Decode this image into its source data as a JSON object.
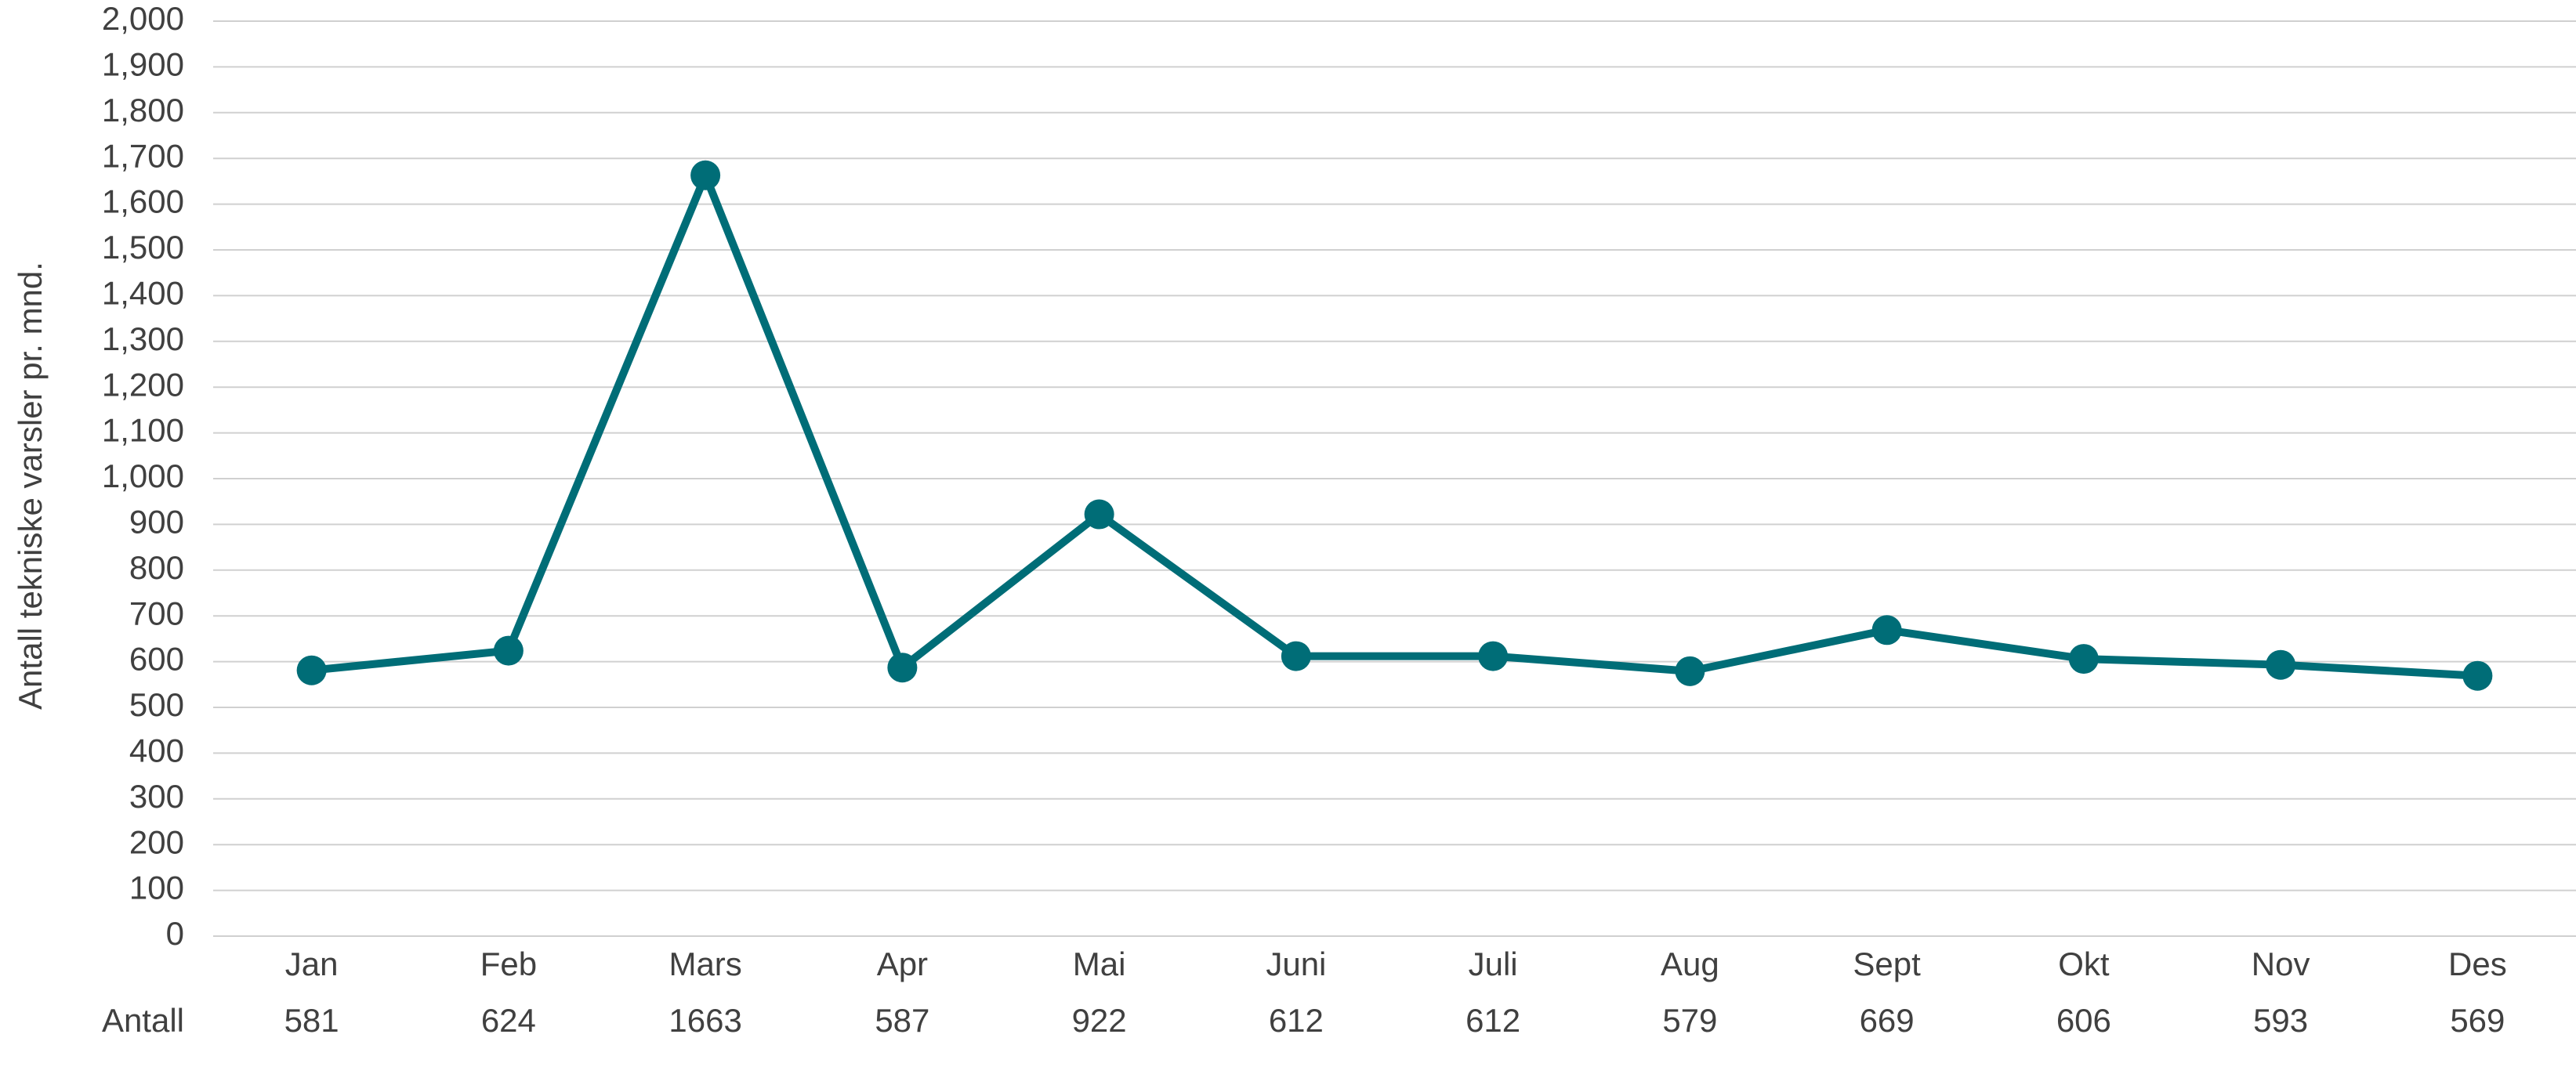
{
  "chart_data": {
    "type": "line",
    "y_label": "Antall tekniske varsler pr. mnd.",
    "categories": [
      "Jan",
      "Feb",
      "Mars",
      "Apr",
      "Mai",
      "Juni",
      "Juli",
      "Aug",
      "Sept",
      "Okt",
      "Nov",
      "Des"
    ],
    "series": [
      {
        "name": "Antall",
        "color": "#006d77",
        "values": [
          581,
          624,
          1663,
          587,
          922,
          612,
          612,
          579,
          669,
          606,
          593,
          569
        ]
      }
    ],
    "ylim": [
      0,
      2000
    ],
    "yticks": [
      0,
      100,
      200,
      300,
      400,
      500,
      600,
      700,
      800,
      900,
      {
        "value": 1000,
        "label": "1,000"
      },
      {
        "value": 1100,
        "label": "1,100"
      },
      {
        "value": 1200,
        "label": "1,200"
      },
      {
        "value": 1300,
        "label": "1,300"
      },
      {
        "value": 1400,
        "label": "1,400"
      },
      {
        "value": 1500,
        "label": "1,500"
      },
      {
        "value": 1600,
        "label": "1,600"
      },
      {
        "value": 1700,
        "label": "1,700"
      },
      {
        "value": 1800,
        "label": "1,800"
      },
      {
        "value": 1900,
        "label": "1,900"
      },
      {
        "value": 2000,
        "label": "2,000"
      }
    ],
    "grid": true,
    "data_table": true
  }
}
